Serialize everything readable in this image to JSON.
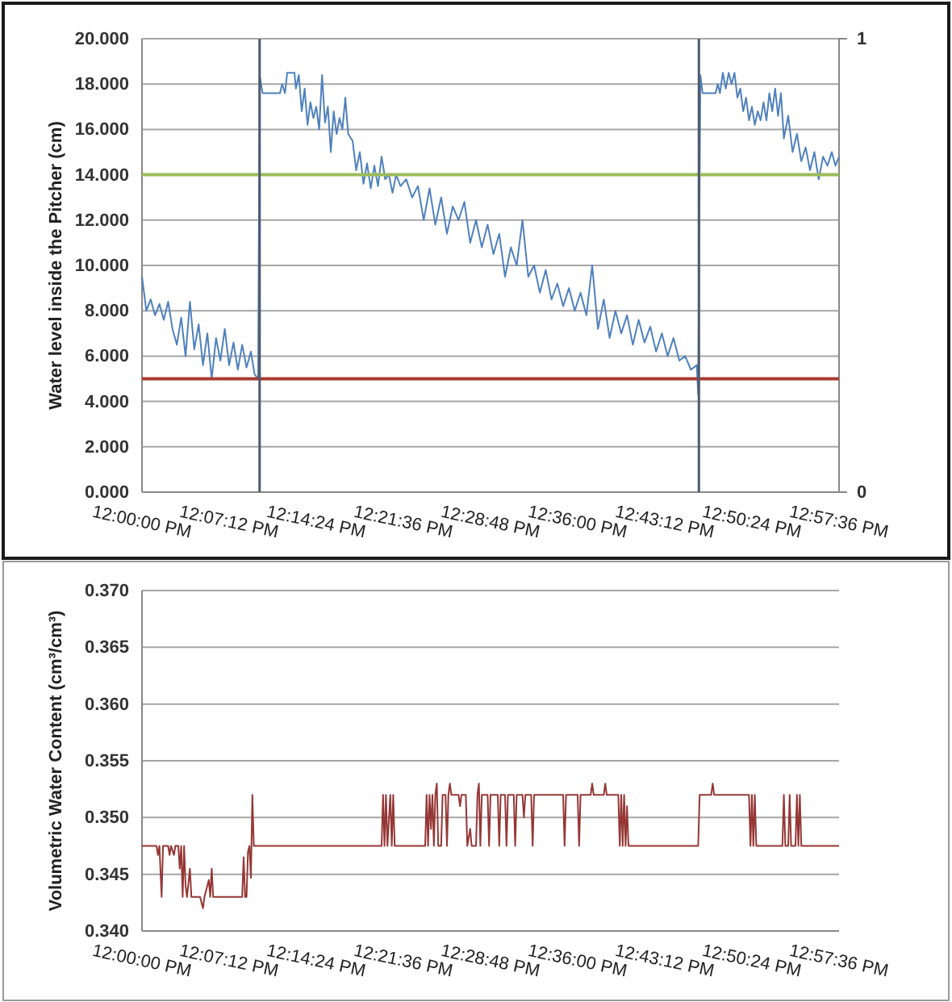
{
  "chart_data": [
    {
      "type": "line",
      "ylabel": "Water level inside the Pitcher (cm)",
      "grid": "y",
      "xlim": [
        12,
        12.96
      ],
      "xticks": [
        {
          "value": 12,
          "label": "12:00:00 PM"
        },
        {
          "value": 12.12,
          "label": "12:07:12 PM"
        },
        {
          "value": 12.24,
          "label": "12:14:24 PM"
        },
        {
          "value": 12.36,
          "label": "12:21:36 PM"
        },
        {
          "value": 12.48,
          "label": "12:28:48 PM"
        },
        {
          "value": 12.6,
          "label": "12:36:00 PM"
        },
        {
          "value": 12.72,
          "label": "12:43:12 PM"
        },
        {
          "value": 12.84,
          "label": "12:50:24 PM"
        },
        {
          "value": 12.96,
          "label": "12:57:36 PM"
        }
      ],
      "ylim": [
        0,
        20
      ],
      "yticks": [
        {
          "value": 0,
          "label": "0.000"
        },
        {
          "value": 2,
          "label": "2.000"
        },
        {
          "value": 4,
          "label": "4.000"
        },
        {
          "value": 6,
          "label": "6.000"
        },
        {
          "value": 8,
          "label": "8.000"
        },
        {
          "value": 10,
          "label": "10.000"
        },
        {
          "value": 12,
          "label": "12.000"
        },
        {
          "value": 14,
          "label": "14.000"
        },
        {
          "value": 16,
          "label": "16.000"
        },
        {
          "value": 18,
          "label": "18.000"
        },
        {
          "value": 20,
          "label": "20.000"
        }
      ],
      "y2lim": [
        0,
        1
      ],
      "y2ticks": [
        0,
        1
      ],
      "ref_lines": [
        {
          "axis": "y",
          "value": 14,
          "color": "#9bbb59"
        },
        {
          "axis": "y",
          "value": 5,
          "color": "#a93a30"
        }
      ],
      "series": [
        {
          "color": "#4f81bd",
          "x": [
            12.0,
            12.006,
            12.012,
            12.018,
            12.024,
            12.03,
            12.036,
            12.042,
            12.048,
            12.054,
            12.06,
            12.066,
            12.072,
            12.078,
            12.084,
            12.09,
            12.096,
            12.102,
            12.108,
            12.114,
            12.12,
            12.126,
            12.132,
            12.138,
            12.144,
            12.15,
            12.155,
            12.16,
            12.162,
            12.166,
            12.19,
            12.193,
            12.197,
            12.2,
            12.21,
            12.212,
            12.216,
            12.22,
            12.224,
            12.228,
            12.232,
            12.236,
            12.24,
            12.244,
            12.248,
            12.252,
            12.256,
            12.26,
            12.264,
            12.268,
            12.272,
            12.276,
            12.28,
            12.284,
            12.29,
            12.295,
            12.3,
            12.305,
            12.31,
            12.315,
            12.32,
            12.325,
            12.33,
            12.335,
            12.34,
            12.345,
            12.35,
            12.356,
            12.364,
            12.372,
            12.38,
            12.388,
            12.396,
            12.404,
            12.412,
            12.42,
            12.428,
            12.436,
            12.444,
            12.452,
            12.46,
            12.468,
            12.476,
            12.484,
            12.492,
            12.5,
            12.508,
            12.516,
            12.524,
            12.532,
            12.54,
            12.548,
            12.556,
            12.564,
            12.572,
            12.58,
            12.588,
            12.596,
            12.604,
            12.612,
            12.62,
            12.628,
            12.636,
            12.644,
            12.652,
            12.66,
            12.668,
            12.676,
            12.684,
            12.692,
            12.7,
            12.708,
            12.716,
            12.724,
            12.732,
            12.74,
            12.748,
            12.756,
            12.764,
            12.766,
            12.769,
            12.772,
            12.79,
            12.793,
            12.796,
            12.8,
            12.804,
            12.808,
            12.812,
            12.816,
            12.82,
            12.824,
            12.828,
            12.832,
            12.836,
            12.84,
            12.844,
            12.848,
            12.852,
            12.856,
            12.86,
            12.864,
            12.868,
            12.872,
            12.876,
            12.88,
            12.884,
            12.89,
            12.896,
            12.902,
            12.908,
            12.914,
            12.92,
            12.926,
            12.932,
            12.938,
            12.944,
            12.95,
            12.955,
            12.96
          ],
          "values": [
            9.5,
            8.0,
            8.5,
            7.8,
            8.3,
            7.6,
            8.4,
            7.2,
            6.5,
            7.7,
            6.0,
            8.4,
            6.3,
            7.4,
            5.6,
            7.0,
            5.0,
            6.8,
            5.8,
            7.2,
            5.6,
            6.6,
            5.4,
            6.5,
            5.5,
            6.2,
            5.2,
            5.0,
            18.4,
            17.6,
            17.6,
            18.0,
            17.6,
            18.5,
            18.5,
            17.8,
            18.4,
            16.8,
            17.8,
            16.2,
            17.2,
            16.5,
            17.0,
            16.0,
            18.4,
            16.3,
            17.0,
            15.0,
            16.8,
            15.8,
            16.5,
            16.0,
            17.4,
            15.8,
            15.5,
            14.2,
            15.0,
            13.6,
            14.5,
            13.4,
            14.4,
            13.5,
            14.8,
            13.8,
            14.0,
            13.2,
            14.0,
            13.5,
            13.8,
            13.0,
            13.5,
            12.0,
            13.4,
            11.8,
            13.0,
            11.4,
            12.6,
            12.0,
            12.8,
            11.0,
            12.0,
            10.8,
            11.8,
            10.5,
            11.4,
            9.5,
            10.8,
            10.0,
            12.0,
            9.5,
            10.0,
            8.8,
            9.8,
            8.5,
            9.2,
            8.2,
            9.0,
            8.0,
            8.8,
            7.8,
            10.0,
            7.2,
            8.5,
            6.8,
            8.0,
            7.0,
            7.8,
            6.5,
            7.6,
            6.6,
            7.3,
            6.2,
            7.0,
            6.0,
            6.8,
            5.8,
            6.0,
            5.4,
            5.6,
            4.3,
            18.4,
            17.6,
            17.6,
            18.0,
            17.6,
            18.5,
            17.8,
            18.5,
            18.0,
            18.5,
            17.4,
            17.8,
            16.8,
            17.4,
            16.4,
            17.0,
            16.2,
            16.8,
            16.4,
            17.2,
            16.4,
            17.6,
            16.8,
            17.8,
            16.6,
            17.6,
            15.6,
            16.6,
            15.0,
            15.8,
            14.6,
            15.2,
            14.2,
            15.0,
            13.8,
            14.8,
            14.4,
            15.0,
            14.4,
            14.8
          ]
        },
        {
          "color": "#4d5b6e",
          "axis": "y2",
          "x": [
            12.162,
            12.162
          ],
          "values": [
            0,
            1
          ]
        },
        {
          "color": "#4d5b6e",
          "axis": "y2",
          "x": [
            12.767,
            12.767
          ],
          "values": [
            0,
            1
          ]
        }
      ]
    },
    {
      "type": "line",
      "ylabel": "Volumetric Water Content (cm³/cm³)",
      "grid": "y",
      "xlim": [
        12,
        12.96
      ],
      "xticks": [
        {
          "value": 12,
          "label": "12:00:00 PM"
        },
        {
          "value": 12.12,
          "label": "12:07:12 PM"
        },
        {
          "value": 12.24,
          "label": "12:14:24 PM"
        },
        {
          "value": 12.36,
          "label": "12:21:36 PM"
        },
        {
          "value": 12.48,
          "label": "12:28:48 PM"
        },
        {
          "value": 12.6,
          "label": "12:36:00 PM"
        },
        {
          "value": 12.72,
          "label": "12:43:12 PM"
        },
        {
          "value": 12.84,
          "label": "12:50:24 PM"
        },
        {
          "value": 12.96,
          "label": "12:57:36 PM"
        }
      ],
      "ylim": [
        0.34,
        0.37
      ],
      "yticks": [
        {
          "value": 0.34,
          "label": "0.340"
        },
        {
          "value": 0.345,
          "label": "0.345"
        },
        {
          "value": 0.35,
          "label": "0.350"
        },
        {
          "value": 0.355,
          "label": "0.355"
        },
        {
          "value": 0.36,
          "label": "0.360"
        },
        {
          "value": 0.365,
          "label": "0.365"
        },
        {
          "value": 0.37,
          "label": "0.370"
        }
      ],
      "series": [
        {
          "color": "#953735",
          "x": [
            12.0,
            12.02,
            12.022,
            12.024,
            12.027,
            12.029,
            12.036,
            12.038,
            12.04,
            12.044,
            12.046,
            12.05,
            12.052,
            12.054,
            12.056,
            12.058,
            12.06,
            12.062,
            12.066,
            12.068,
            12.08,
            12.084,
            12.086,
            12.092,
            12.094,
            12.096,
            12.098,
            12.138,
            12.14,
            12.142,
            12.144,
            12.146,
            12.148,
            12.15,
            12.152,
            12.154,
            12.33,
            12.332,
            12.334,
            12.336,
            12.338,
            12.342,
            12.344,
            12.346,
            12.348,
            12.39,
            12.392,
            12.394,
            12.396,
            12.398,
            12.4,
            12.402,
            12.404,
            12.406,
            12.408,
            12.412,
            12.414,
            12.418,
            12.42,
            12.422,
            12.424,
            12.426,
            12.436,
            12.438,
            12.44,
            12.446,
            12.448,
            12.452,
            12.454,
            12.46,
            12.462,
            12.464,
            12.466,
            12.468,
            12.476,
            12.478,
            12.48,
            12.49,
            12.492,
            12.494,
            12.5,
            12.502,
            12.504,
            12.512,
            12.514,
            12.516,
            12.524,
            12.526,
            12.528,
            12.536,
            12.538,
            12.54,
            12.56,
            12.58,
            12.582,
            12.584,
            12.6,
            12.602,
            12.604,
            12.618,
            12.62,
            12.622,
            12.636,
            12.638,
            12.64,
            12.656,
            12.658,
            12.66,
            12.662,
            12.664,
            12.666,
            12.668,
            12.67,
            12.766,
            12.768,
            12.784,
            12.786,
            12.788,
            12.836,
            12.838,
            12.84,
            12.842,
            12.844,
            12.846,
            12.882,
            12.884,
            12.886,
            12.89,
            12.892,
            12.894,
            12.9,
            12.902,
            12.904,
            12.906,
            12.908,
            12.96
          ],
          "values": [
            0.3475,
            0.3475,
            0.3467,
            0.3475,
            0.343,
            0.3475,
            0.3475,
            0.3467,
            0.3475,
            0.3467,
            0.3475,
            0.3475,
            0.3455,
            0.3475,
            0.343,
            0.3475,
            0.344,
            0.343,
            0.3455,
            0.343,
            0.343,
            0.342,
            0.343,
            0.3445,
            0.343,
            0.3455,
            0.343,
            0.343,
            0.3465,
            0.343,
            0.343,
            0.347,
            0.3475,
            0.3447,
            0.352,
            0.3475,
            0.3475,
            0.352,
            0.3475,
            0.352,
            0.3475,
            0.352,
            0.3475,
            0.352,
            0.3475,
            0.3475,
            0.352,
            0.3475,
            0.352,
            0.349,
            0.352,
            0.3475,
            0.352,
            0.353,
            0.3475,
            0.3475,
            0.352,
            0.352,
            0.3475,
            0.352,
            0.353,
            0.352,
            0.352,
            0.351,
            0.352,
            0.352,
            0.3475,
            0.349,
            0.3475,
            0.3475,
            0.352,
            0.353,
            0.3475,
            0.352,
            0.352,
            0.3475,
            0.352,
            0.352,
            0.3475,
            0.352,
            0.352,
            0.3475,
            0.352,
            0.352,
            0.3475,
            0.352,
            0.352,
            0.35,
            0.352,
            0.352,
            0.3475,
            0.352,
            0.352,
            0.352,
            0.3475,
            0.352,
            0.352,
            0.3475,
            0.352,
            0.352,
            0.353,
            0.352,
            0.352,
            0.353,
            0.352,
            0.352,
            0.3475,
            0.352,
            0.3475,
            0.352,
            0.3475,
            0.351,
            0.3475,
            0.3475,
            0.352,
            0.352,
            0.353,
            0.352,
            0.352,
            0.3475,
            0.352,
            0.3475,
            0.352,
            0.3475,
            0.3475,
            0.352,
            0.3475,
            0.3475,
            0.352,
            0.3475,
            0.3475,
            0.352,
            0.3475,
            0.352,
            0.3475,
            0.3475
          ]
        }
      ]
    }
  ]
}
